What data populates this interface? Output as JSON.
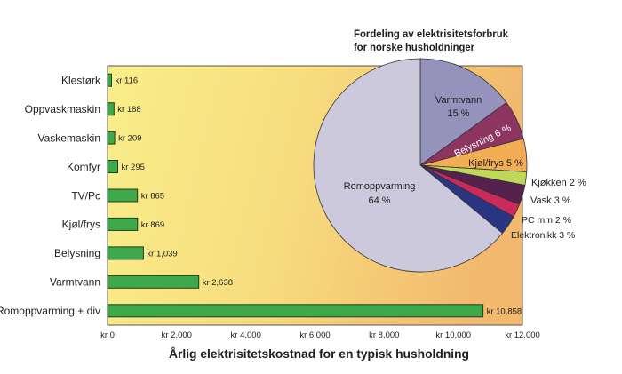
{
  "colors": {
    "bar_fill": "#3ea94b",
    "bar_stroke": "#1f3d22",
    "plot_bg_left": "#f9ee8a",
    "plot_bg_mid": "#f7dc7e",
    "plot_bg_right": "#f2b86d",
    "plot_border": "#555555",
    "pie_outline": "#333333"
  },
  "chart_data": [
    {
      "type": "bar",
      "orientation": "horizontal",
      "title": "",
      "xlabel": "Årlig elektrisitetskostnad for en typisk husholdning",
      "ylabel": "",
      "categories": [
        "Klestørk",
        "Oppvaskmaskin",
        "Vaskemaskin",
        "Komfyr",
        "TV/Pc",
        "Kjøl/frys",
        "Belysning",
        "Varmtvann",
        "Romoppvarming + div"
      ],
      "values": [
        116,
        188,
        209,
        295,
        865,
        869,
        1039,
        2638,
        10858
      ],
      "value_labels": [
        "kr 116",
        "kr 188",
        "kr 209",
        "kr 295",
        "kr 865",
        "kr 869",
        "kr 1,039",
        "kr 2,638",
        "kr 10,858"
      ],
      "xlim": [
        0,
        12000
      ],
      "xticks": [
        0,
        2000,
        4000,
        6000,
        8000,
        10000,
        12000
      ],
      "xtick_labels": [
        "kr 0",
        "kr 2,000",
        "kr 4,000",
        "kr 6,000",
        "kr 8,000",
        "kr 10,000",
        "kr 12,000"
      ],
      "grid": false,
      "legend": false
    },
    {
      "type": "pie",
      "title": "Fordeling av elektrisitetsforbruk for norske husholdninger",
      "title_line1": "Fordeling av elektrisitetsforbruk",
      "title_line2": "for norske husholdninger",
      "start_angle": "12 o'clock, clockwise",
      "slices": [
        {
          "name": "Varmtvann",
          "percent": 15,
          "pct_label": "15 %",
          "label": "Varmtvann 15 %",
          "color": "#9592bc"
        },
        {
          "name": "Belysning",
          "percent": 6,
          "pct_label": "6 %",
          "label": "Belysning 6 %",
          "color": "#8b3560"
        },
        {
          "name": "Kjøl/frys",
          "percent": 5,
          "pct_label": "5 %",
          "label": "Kjøl/frys 5 %",
          "color": "#f2ad55"
        },
        {
          "name": "Kjøkken",
          "percent": 2,
          "pct_label": "2 %",
          "label": "Kjøkken 2 %",
          "color": "#bed95a"
        },
        {
          "name": "Vask",
          "percent": 3,
          "pct_label": "3 %",
          "label": "Vask 3 %",
          "color": "#55224f"
        },
        {
          "name": "PC mm",
          "percent": 2,
          "pct_label": "2 %",
          "label": "PC mm 2 %",
          "color": "#cc2a5a"
        },
        {
          "name": "Elektronikk",
          "percent": 3,
          "pct_label": "3 %",
          "label": "Elektronikk 3 %",
          "color": "#293580"
        },
        {
          "name": "Romoppvarming",
          "percent": 64,
          "pct_label": "64 %",
          "label": "Romoppvarming 64 %",
          "color": "#cdc9dc"
        }
      ]
    }
  ]
}
